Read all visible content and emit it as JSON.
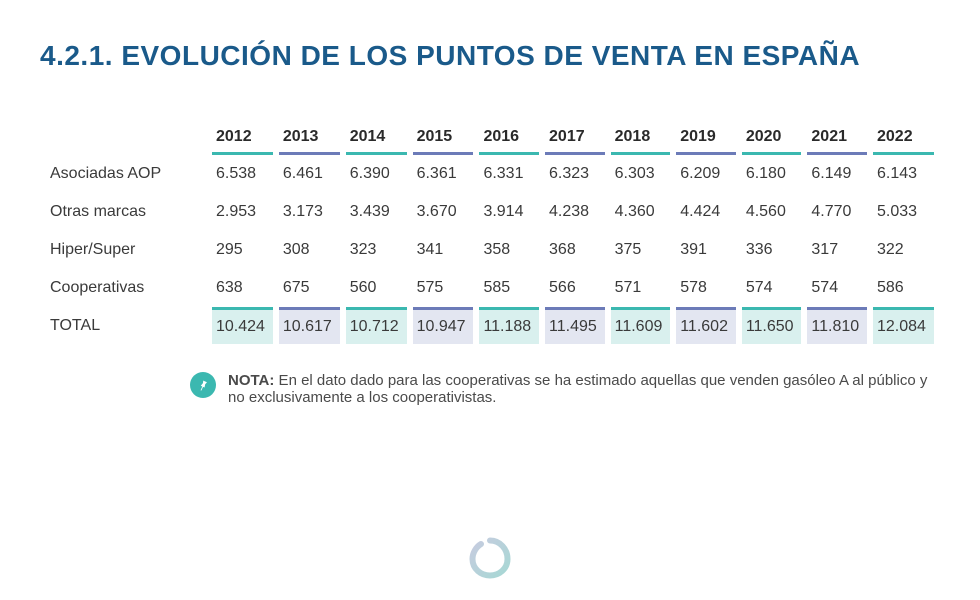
{
  "title": "4.2.1. EVOLUCIÓN DE LOS PUNTOS DE VENTA EN ESPAÑA",
  "title_color": "#1a5a8a",
  "years": [
    "2012",
    "2013",
    "2014",
    "2015",
    "2016",
    "2017",
    "2018",
    "2019",
    "2020",
    "2021",
    "2022"
  ],
  "header_underline_colors": [
    "#3bb8b0",
    "#6c7bb8",
    "#3bb8b0",
    "#6c7bb8",
    "#3bb8b0",
    "#6c7bb8",
    "#3bb8b0",
    "#6c7bb8",
    "#3bb8b0",
    "#6c7bb8",
    "#3bb8b0"
  ],
  "rows": [
    {
      "label": "Asociadas AOP",
      "values": [
        "6.538",
        "6.461",
        "6.390",
        "6.361",
        "6.331",
        "6.323",
        "6.303",
        "6.209",
        "6.180",
        "6.149",
        "6.143"
      ]
    },
    {
      "label": "Otras marcas",
      "values": [
        "2.953",
        "3.173",
        "3.439",
        "3.670",
        "3.914",
        "4.238",
        "4.360",
        "4.424",
        "4.560",
        "4.770",
        "5.033"
      ]
    },
    {
      "label": "Hiper/Super",
      "values": [
        "295",
        "308",
        "323",
        "341",
        "358",
        "368",
        "375",
        "391",
        "336",
        "317",
        "322"
      ]
    },
    {
      "label": "Cooperativas",
      "values": [
        "638",
        "675",
        "560",
        "575",
        "585",
        "566",
        "571",
        "578",
        "574",
        "574",
        "586"
      ]
    }
  ],
  "total": {
    "label": "TOTAL",
    "values": [
      "10.424",
      "10.617",
      "10.712",
      "10.947",
      "11.188",
      "11.495",
      "11.609",
      "11.602",
      "11.650",
      "11.810",
      "12.084"
    ],
    "top_border_colors": [
      "#3bb8b0",
      "#6c7bb8",
      "#3bb8b0",
      "#6c7bb8",
      "#3bb8b0",
      "#6c7bb8",
      "#3bb8b0",
      "#6c7bb8",
      "#3bb8b0",
      "#6c7bb8",
      "#3bb8b0"
    ],
    "cell_bg_colors": [
      "#d9f0ee",
      "#e3e6f1",
      "#d9f0ee",
      "#e3e6f1",
      "#d9f0ee",
      "#e3e6f1",
      "#d9f0ee",
      "#e3e6f1",
      "#d9f0ee",
      "#e3e6f1",
      "#d9f0ee"
    ]
  },
  "note": {
    "prefix": "NOTA:",
    "body": " En el dato dado para las cooperativas se ha estimado aquellas que venden gasóleo A al público y no exclusivamente a los cooperativistas.",
    "icon_bg": "#3bb8b0",
    "icon_fg": "#ffffff"
  },
  "text_color": "#3a3a3a",
  "background_color": "#ffffff"
}
